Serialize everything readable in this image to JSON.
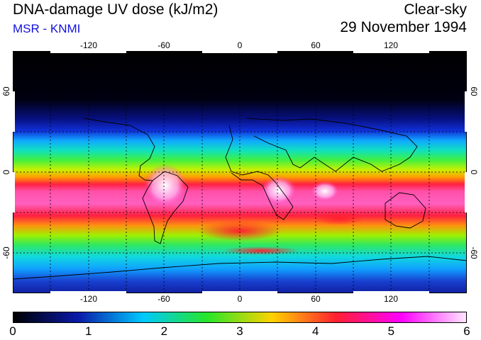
{
  "header": {
    "title": "DNA-damage UV dose (kJ/m2)",
    "subtitle": "MSR - KNMI",
    "condition": "Clear-sky",
    "date": "29 November 1994"
  },
  "map": {
    "lon_ticks": [
      "-120",
      "-60",
      "0",
      "60",
      "120"
    ],
    "lat_ticks": [
      "60",
      "0",
      "-60"
    ],
    "grid": true
  },
  "colorbar": {
    "labels": [
      "0",
      "1",
      "2",
      "3",
      "4",
      "5",
      "6"
    ],
    "colors": [
      "#000000",
      "#0a1aa8",
      "#00c8ff",
      "#28e628",
      "#ffd200",
      "#ff1e32",
      "#ff00ff",
      "#ffe6ff"
    ]
  }
}
